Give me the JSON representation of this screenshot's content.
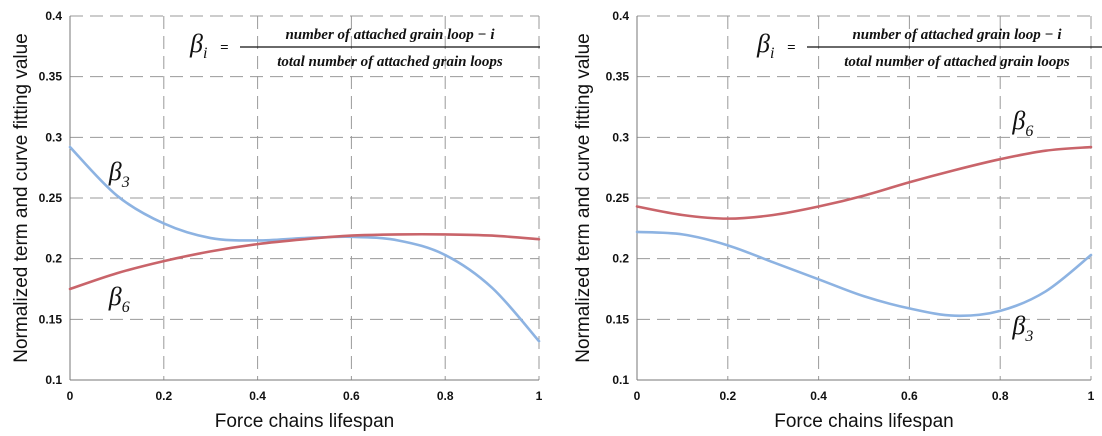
{
  "chart_data": [
    {
      "type": "line",
      "xlabel": "Force chains lifespan",
      "ylabel": "Normalized term and curve fitting value",
      "xlim": [
        0,
        1
      ],
      "ylim": [
        0.1,
        0.4
      ],
      "xticks": [
        "0",
        "0.2",
        "0.4",
        "0.6",
        "0.8",
        "1"
      ],
      "yticks": [
        "0.1",
        "0.15",
        "0.2",
        "0.25",
        "0.3",
        "0.35",
        "0.4"
      ],
      "grid": true,
      "formula": {
        "lhs": "β",
        "lhs_sub": "i",
        "eq": "=",
        "numerator": "number of attached grain loop − i",
        "denominator": "total number of attached grain loops"
      },
      "series": [
        {
          "name": "β3",
          "color": "#8db3e2",
          "x": [
            0,
            0.1,
            0.2,
            0.3,
            0.4,
            0.5,
            0.6,
            0.7,
            0.8,
            0.9,
            1.0
          ],
          "y": [
            0.292,
            0.252,
            0.229,
            0.217,
            0.215,
            0.217,
            0.218,
            0.215,
            0.203,
            0.176,
            0.132
          ]
        },
        {
          "name": "β6",
          "color": "#c9646a",
          "x": [
            0,
            0.1,
            0.2,
            0.3,
            0.4,
            0.5,
            0.6,
            0.7,
            0.8,
            0.9,
            1.0
          ],
          "y": [
            0.175,
            0.188,
            0.198,
            0.206,
            0.212,
            0.216,
            0.219,
            0.22,
            0.22,
            0.219,
            0.216
          ]
        }
      ],
      "labels": [
        {
          "base": "β",
          "sub": "3",
          "x": 0.105,
          "y": 0.265
        },
        {
          "base": "β",
          "sub": "6",
          "x": 0.105,
          "y": 0.162
        }
      ]
    },
    {
      "type": "line",
      "xlabel": "Force chains lifespan",
      "ylabel": "Normalized term and curve fitting value",
      "xlim": [
        0,
        1
      ],
      "ylim": [
        0.1,
        0.4
      ],
      "xticks": [
        "0",
        "0.2",
        "0.4",
        "0.6",
        "0.8",
        "1"
      ],
      "yticks": [
        "0.1",
        "0.15",
        "0.2",
        "0.25",
        "0.3",
        "0.35",
        "0.4"
      ],
      "grid": true,
      "formula": {
        "lhs": "β",
        "lhs_sub": "i",
        "eq": "=",
        "numerator": "number of attached grain loop − i",
        "denominator": "total number of attached grain loops"
      },
      "series": [
        {
          "name": "β6",
          "color": "#c9646a",
          "x": [
            0,
            0.1,
            0.2,
            0.3,
            0.4,
            0.5,
            0.6,
            0.7,
            0.8,
            0.9,
            1.0
          ],
          "y": [
            0.243,
            0.236,
            0.233,
            0.236,
            0.243,
            0.252,
            0.263,
            0.273,
            0.282,
            0.289,
            0.292
          ]
        },
        {
          "name": "β3",
          "color": "#8db3e2",
          "x": [
            0,
            0.1,
            0.2,
            0.3,
            0.4,
            0.5,
            0.6,
            0.7,
            0.8,
            0.9,
            1.0
          ],
          "y": [
            0.222,
            0.22,
            0.211,
            0.197,
            0.183,
            0.169,
            0.159,
            0.153,
            0.157,
            0.173,
            0.203
          ]
        }
      ],
      "labels": [
        {
          "base": "β",
          "sub": "6",
          "x": 0.85,
          "y": 0.307
        },
        {
          "base": "β",
          "sub": "3",
          "x": 0.85,
          "y": 0.138
        }
      ]
    }
  ]
}
